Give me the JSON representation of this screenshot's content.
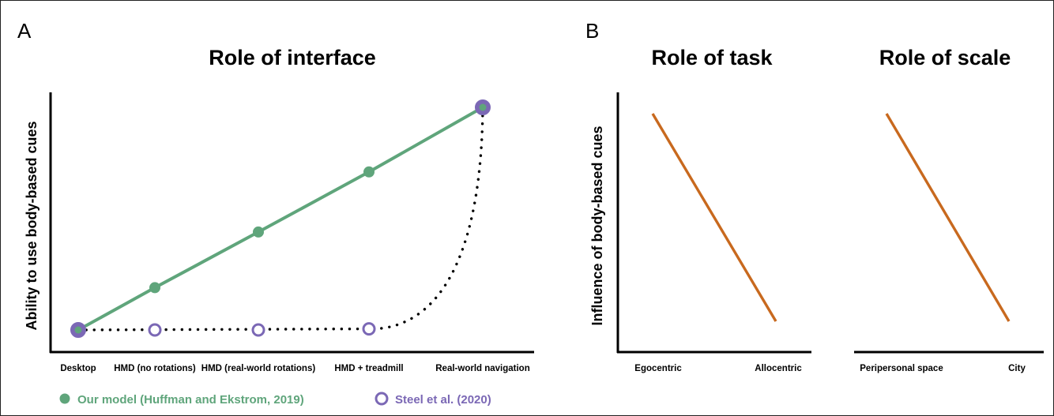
{
  "panels": {
    "a": "A",
    "b": "B"
  },
  "chart_data": [
    {
      "type": "line",
      "title": "Role of interface",
      "ylabel": "Ability to use  body-based cues",
      "xlabel": "",
      "categories": [
        "Desktop",
        "HMD (no rotations)",
        "HMD (real-world rotations)",
        "HMD + treadmill",
        "Real-world navigation"
      ],
      "ylim": [
        0,
        1
      ],
      "series": [
        {
          "name": "Our model (Huffman and Ekstrom, 2019)",
          "color": "#5fa57b",
          "style": "solid-filled-markers",
          "values": [
            0.0,
            0.19,
            0.44,
            0.71,
            1.0
          ]
        },
        {
          "name": "Steel et al. (2020)",
          "color": "#7b68b5",
          "style": "dotted-open-markers",
          "values": [
            0.0,
            0.0,
            0.0,
            0.005,
            1.0
          ]
        }
      ],
      "legend": "bottom"
    },
    {
      "type": "line",
      "title": "Role of task",
      "ylabel": "Influence of  body-based cues",
      "xlabel": "",
      "categories": [
        "Egocentric",
        "Allocentric"
      ],
      "ylim": [
        0,
        1
      ],
      "series": [
        {
          "color": "#c8691e",
          "values": [
            1.0,
            0.0
          ]
        }
      ]
    },
    {
      "type": "line",
      "title": "Role of scale",
      "ylabel": "",
      "xlabel": "",
      "categories": [
        "Peripersonal space",
        "City"
      ],
      "ylim": [
        0,
        1
      ],
      "series": [
        {
          "color": "#c8691e",
          "values": [
            1.0,
            0.0
          ]
        }
      ]
    }
  ]
}
